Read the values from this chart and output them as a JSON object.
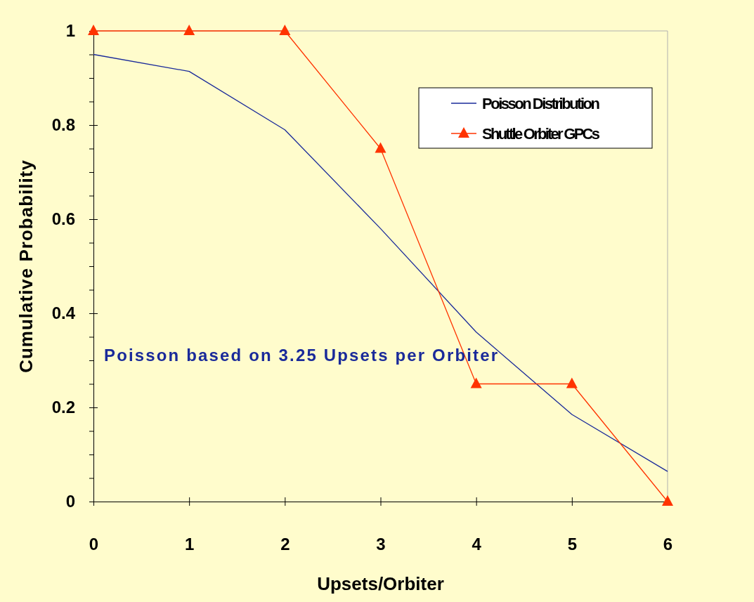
{
  "chart_data": {
    "type": "line",
    "xlabel": "Upsets/Orbiter",
    "ylabel": "Cumulative Probability",
    "x": [
      0,
      1,
      2,
      3,
      4,
      5,
      6
    ],
    "xlim": [
      0,
      6
    ],
    "xticks": [
      0,
      1,
      2,
      3,
      4,
      5,
      6
    ],
    "ylim": [
      0,
      1
    ],
    "yticks": [
      0,
      {
        "value": 0.05,
        "label": null
      },
      {
        "value": 0.1,
        "label": null
      },
      {
        "value": 0.15,
        "label": null
      },
      "0.2",
      {
        "value": 0.25,
        "label": null
      },
      {
        "value": 0.3,
        "label": null
      },
      {
        "value": 0.35,
        "label": null
      },
      {
        "value": 0.4,
        "label": "0.4"
      },
      {
        "value": 0.45,
        "label": null
      },
      {
        "value": 0.5,
        "label": null
      },
      {
        "value": 0.55,
        "label": null
      },
      {
        "value": 0.6,
        "label": "0.6"
      },
      {
        "value": 0.65,
        "label": null
      },
      {
        "value": 0.7,
        "label": null
      },
      {
        "value": 0.75,
        "label": null
      },
      {
        "value": 0.8,
        "label": "0.8"
      },
      {
        "value": 0.85,
        "label": null
      },
      {
        "value": 0.9,
        "label": null
      },
      {
        "value": 0.95,
        "label": null
      },
      1
    ],
    "series": [
      {
        "name": "Poisson Distribution",
        "color": "#1a2a9a",
        "marker": "none",
        "values": [
          0.95,
          0.914,
          0.79,
          0.58,
          0.36,
          0.185,
          0.064
        ]
      },
      {
        "name": "Shuttle Orbiter GPCs",
        "color": "#ff3300",
        "marker": "triangle",
        "values": [
          1,
          1,
          1,
          0.75,
          0.25,
          0.25,
          0
        ]
      }
    ],
    "legend": "top right",
    "grid": false,
    "annotations": [
      "Poisson based on 3.25 Upsets  per Orbiter"
    ]
  }
}
